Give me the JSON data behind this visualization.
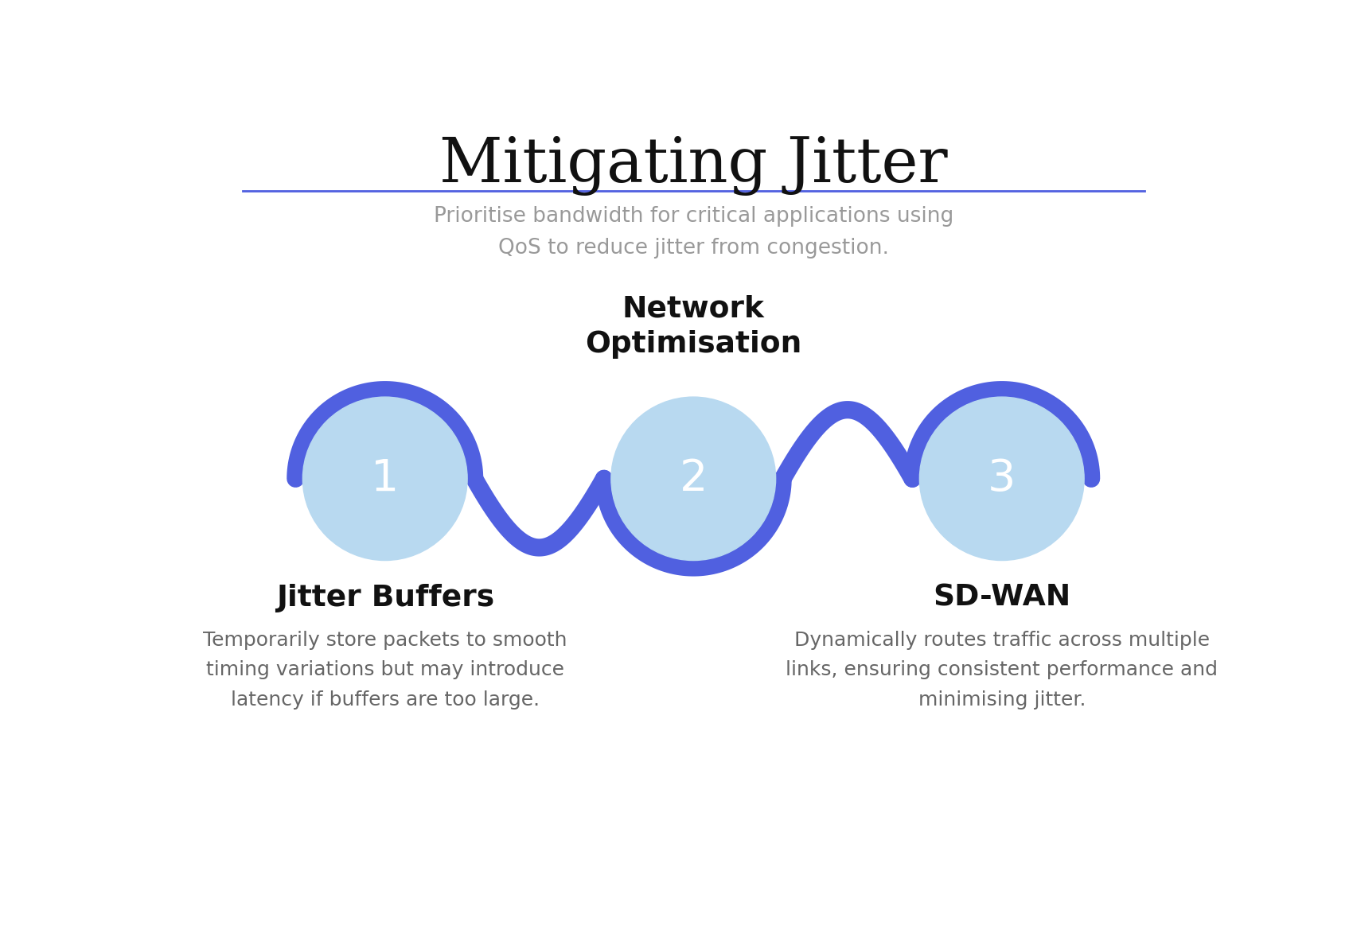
{
  "title": "Mitigating Jitter",
  "title_fontsize": 56,
  "line_color": "#5060e0",
  "bg_color": "#ffffff",
  "subtitle_text": "Prioritise bandwidth for critical applications using\nQoS to reduce jitter from congestion.",
  "subtitle_color": "#999999",
  "subtitle_fontsize": 19,
  "circle_fill_color": "#b8d9f0",
  "circle_numbers": [
    "1",
    "2",
    "3"
  ],
  "circle_number_color": "#ffffff",
  "circle_number_fontsize": 40,
  "label1": "Jitter Buffers",
  "label2": "Network\nOptimisation",
  "label3": "SD-WAN",
  "label_fontsize": 27,
  "desc1": "Temporarily store packets to smooth\ntiming variations but may introduce\nlatency if buffers are too large.",
  "desc3": "Dynamically routes traffic across multiple\nlinks, ensuring consistent performance and\nminimising jitter.",
  "desc_fontsize": 18,
  "desc_color": "#666666",
  "snake_color": "#5060e0",
  "snake_linewidth": 16,
  "c1x": 3.5,
  "c1y": 5.8,
  "c2x": 8.5,
  "c2y": 5.8,
  "c3x": 13.5,
  "c3y": 5.8,
  "cr": 1.45
}
